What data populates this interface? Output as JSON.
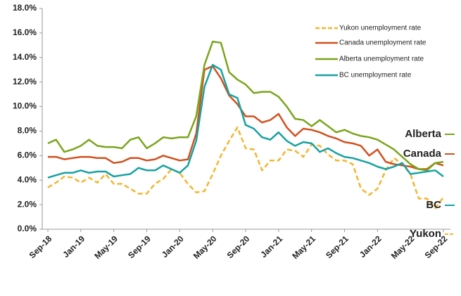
{
  "chart_data": {
    "type": "line",
    "categories": [
      "Sep-18",
      null,
      null,
      null,
      "Jan-19",
      null,
      null,
      null,
      "May-19",
      null,
      null,
      null,
      "Sep-19",
      null,
      null,
      null,
      "Jan-20",
      null,
      null,
      null,
      "May-20",
      null,
      null,
      null,
      "Sep-20",
      null,
      null,
      null,
      "Jan-21",
      null,
      null,
      null,
      "May-21",
      null,
      null,
      null,
      "Sep-21",
      null,
      null,
      null,
      "Jan-22",
      null,
      null,
      null,
      "May-22",
      null,
      null,
      null,
      "Sep-22"
    ],
    "ylim": [
      0,
      18
    ],
    "yticks": [
      {
        "value": 0,
        "label": "0.0%"
      },
      {
        "value": 2,
        "label": "2.0%"
      },
      {
        "value": 4,
        "label": "4.0%"
      },
      {
        "value": 6,
        "label": "6.0%"
      },
      {
        "value": 8,
        "label": "8.0%"
      },
      {
        "value": 10,
        "label": "10.0%"
      },
      {
        "value": 12,
        "label": "12.0%"
      },
      {
        "value": 14,
        "label": "14.0%"
      },
      {
        "value": 16,
        "label": "16.0%"
      },
      {
        "value": 18,
        "label": "18.0%"
      }
    ],
    "grid": false,
    "legend": "upper right",
    "series": [
      {
        "name": "Yukon unemployment rate",
        "end_label": "Yukon",
        "color": "#f5b52c",
        "dashed": true,
        "values": [
          3.4,
          3.8,
          4.3,
          4.2,
          3.8,
          4.2,
          3.8,
          4.5,
          3.7,
          3.7,
          3.3,
          2.9,
          2.9,
          3.7,
          4.1,
          4.9,
          4.6,
          3.7,
          3.0,
          3.1,
          4.5,
          6.0,
          7.2,
          8.3,
          6.6,
          6.5,
          4.8,
          5.6,
          5.6,
          6.5,
          6.4,
          5.9,
          6.9,
          6.8,
          6.1,
          5.6,
          5.6,
          5.3,
          3.3,
          2.8,
          3.3,
          4.8,
          5.8,
          5.3,
          4.5,
          2.5,
          2.5,
          1.7,
          2.6
        ]
      },
      {
        "name": "Canada unemployment rate",
        "end_label": "Canada",
        "color": "#d2501e",
        "dashed": false,
        "values": [
          5.9,
          5.9,
          5.7,
          5.8,
          5.9,
          5.9,
          5.8,
          5.8,
          5.4,
          5.5,
          5.8,
          5.8,
          5.6,
          5.7,
          6.0,
          5.8,
          5.6,
          5.7,
          7.8,
          13.0,
          13.3,
          12.3,
          10.9,
          10.2,
          9.2,
          9.2,
          8.7,
          8.9,
          9.4,
          8.3,
          7.6,
          8.2,
          8.1,
          7.9,
          7.6,
          7.4,
          7.1,
          7.0,
          6.8,
          6.0,
          6.5,
          5.5,
          5.3,
          5.2,
          5.1,
          4.9,
          4.9,
          5.4,
          5.2
        ]
      },
      {
        "name": "Alberta unemployment rate",
        "end_label": "Alberta",
        "color": "#7aa51c",
        "dashed": false,
        "values": [
          7.0,
          7.3,
          6.3,
          6.5,
          6.8,
          7.3,
          6.8,
          6.7,
          6.7,
          6.6,
          7.3,
          7.5,
          6.6,
          7.0,
          7.5,
          7.4,
          7.5,
          7.5,
          9.2,
          13.4,
          15.3,
          15.2,
          12.8,
          12.2,
          11.8,
          11.1,
          11.2,
          11.2,
          10.8,
          10.0,
          9.0,
          8.9,
          8.4,
          8.9,
          8.4,
          7.9,
          8.1,
          7.8,
          7.6,
          7.5,
          7.3,
          6.9,
          6.5,
          5.9,
          5.3,
          4.9,
          4.8,
          5.4,
          5.5
        ]
      },
      {
        "name": "BC unemployment rate",
        "end_label": "BC",
        "color": "#17a2a2",
        "dashed": false,
        "values": [
          4.2,
          4.4,
          4.6,
          4.6,
          4.8,
          4.6,
          4.7,
          4.7,
          4.3,
          4.4,
          4.5,
          5.0,
          4.8,
          4.8,
          5.2,
          4.9,
          4.6,
          5.2,
          7.2,
          11.6,
          13.4,
          13.0,
          11.0,
          10.7,
          8.5,
          8.2,
          7.5,
          7.3,
          7.9,
          7.2,
          6.8,
          7.1,
          7.0,
          6.3,
          6.6,
          6.2,
          5.9,
          5.8,
          5.6,
          5.4,
          5.1,
          4.9,
          5.1,
          5.4,
          4.5,
          4.6,
          4.7,
          4.8,
          4.3
        ]
      }
    ]
  }
}
